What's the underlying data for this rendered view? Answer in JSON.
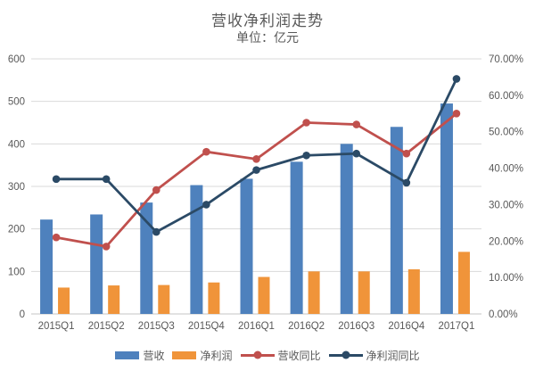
{
  "title": "营收净利润走势",
  "subtitle": "单位：亿元",
  "colors": {
    "background": "#ffffff",
    "text": "#595959",
    "grid": "#d9d9d9",
    "baseline": "#c6c6c6",
    "revenue_bar": "#4e81bd",
    "net_profit_bar": "#f0943a",
    "revenue_yoy_line": "#c0504d",
    "net_profit_yoy_line": "#2b4a66"
  },
  "chart_data": {
    "type": "combo-bar-line",
    "title": "营收净利润走势",
    "subtitle": "单位：亿元",
    "categories": [
      "2015Q1",
      "2015Q2",
      "2015Q3",
      "2015Q4",
      "2016Q1",
      "2016Q2",
      "2016Q3",
      "2016Q4",
      "2017Q1"
    ],
    "series": [
      {
        "name": "营收",
        "slug": "revenue",
        "type": "bar",
        "axis": "left",
        "color": "#4e81bd",
        "values": [
          222,
          234,
          262,
          303,
          318,
          358,
          400,
          440,
          495
        ]
      },
      {
        "name": "净利润",
        "slug": "net-profit",
        "type": "bar",
        "axis": "left",
        "color": "#f0943a",
        "values": [
          62,
          67,
          68,
          74,
          87,
          100,
          100,
          105,
          146
        ]
      },
      {
        "name": "营收同比",
        "slug": "revenue-yoy",
        "type": "line",
        "axis": "right",
        "color": "#c0504d",
        "values": [
          21.0,
          18.5,
          34.0,
          44.5,
          42.5,
          52.5,
          52.0,
          44.0,
          55.0
        ]
      },
      {
        "name": "净利润同比",
        "slug": "net-profit-yoy",
        "type": "line",
        "axis": "right",
        "color": "#2b4a66",
        "values": [
          37.0,
          37.0,
          22.5,
          30.0,
          39.5,
          43.5,
          44.0,
          36.0,
          64.5
        ]
      }
    ],
    "left_axis": {
      "min": 0,
      "max": 600,
      "step": 100,
      "tick_labels": [
        "0",
        "100",
        "200",
        "300",
        "400",
        "500",
        "600"
      ]
    },
    "right_axis": {
      "min": 0,
      "max": 70,
      "step": 10,
      "unit": "percent",
      "tick_labels": [
        "0.00%",
        "10.00%",
        "20.00%",
        "30.00%",
        "40.00%",
        "50.00%",
        "60.00%",
        "70.00%"
      ]
    },
    "grid": "horizontal-left-axis-only",
    "legend_position": "bottom"
  }
}
